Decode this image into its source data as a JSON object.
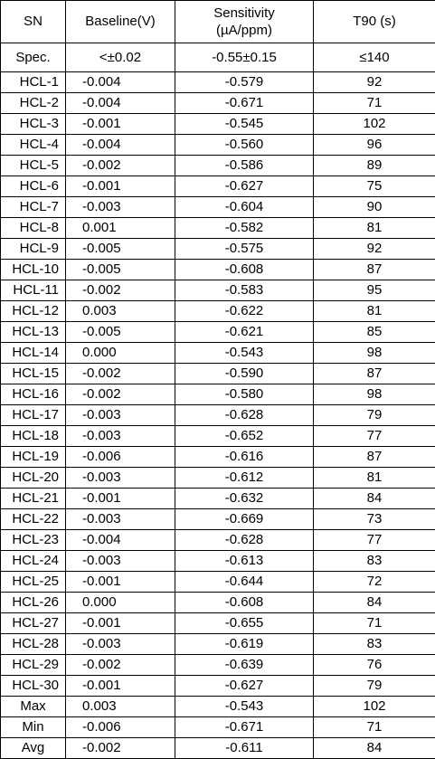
{
  "headers": {
    "sn": "SN",
    "baseline": "Baseline(V)",
    "sensitivity_line1": "Sensitivity",
    "sensitivity_line2": "(µA/ppm)",
    "t90": "T90 (s)"
  },
  "spec": {
    "label": "Spec.",
    "baseline": "<±0.02",
    "sensitivity": "-0.55±0.15",
    "t90": "≤140"
  },
  "rows": [
    {
      "sn": "HCL-1",
      "baseline": "-0.004",
      "sensitivity": "-0.579",
      "t90": "92"
    },
    {
      "sn": "HCL-2",
      "baseline": "-0.004",
      "sensitivity": "-0.671",
      "t90": "71"
    },
    {
      "sn": "HCL-3",
      "baseline": "-0.001",
      "sensitivity": "-0.545",
      "t90": "102"
    },
    {
      "sn": "HCL-4",
      "baseline": "-0.004",
      "sensitivity": "-0.560",
      "t90": "96"
    },
    {
      "sn": "HCL-5",
      "baseline": "-0.002",
      "sensitivity": "-0.586",
      "t90": "89"
    },
    {
      "sn": "HCL-6",
      "baseline": "-0.001",
      "sensitivity": "-0.627",
      "t90": "75"
    },
    {
      "sn": "HCL-7",
      "baseline": "-0.003",
      "sensitivity": "-0.604",
      "t90": "90"
    },
    {
      "sn": "HCL-8",
      "baseline": "0.001",
      "sensitivity": "-0.582",
      "t90": "81"
    },
    {
      "sn": "HCL-9",
      "baseline": "-0.005",
      "sensitivity": "-0.575",
      "t90": "92"
    },
    {
      "sn": "HCL-10",
      "baseline": "-0.005",
      "sensitivity": "-0.608",
      "t90": "87"
    },
    {
      "sn": "HCL-11",
      "baseline": "-0.002",
      "sensitivity": "-0.583",
      "t90": "95"
    },
    {
      "sn": "HCL-12",
      "baseline": "0.003",
      "sensitivity": "-0.622",
      "t90": "81"
    },
    {
      "sn": "HCL-13",
      "baseline": "-0.005",
      "sensitivity": "-0.621",
      "t90": "85"
    },
    {
      "sn": "HCL-14",
      "baseline": "0.000",
      "sensitivity": "-0.543",
      "t90": "98"
    },
    {
      "sn": "HCL-15",
      "baseline": "-0.002",
      "sensitivity": "-0.590",
      "t90": "87"
    },
    {
      "sn": "HCL-16",
      "baseline": "-0.002",
      "sensitivity": "-0.580",
      "t90": "98"
    },
    {
      "sn": "HCL-17",
      "baseline": "-0.003",
      "sensitivity": "-0.628",
      "t90": "79"
    },
    {
      "sn": "HCL-18",
      "baseline": "-0.003",
      "sensitivity": "-0.652",
      "t90": "77"
    },
    {
      "sn": "HCL-19",
      "baseline": "-0.006",
      "sensitivity": "-0.616",
      "t90": "87"
    },
    {
      "sn": "HCL-20",
      "baseline": "-0.003",
      "sensitivity": "-0.612",
      "t90": "81"
    },
    {
      "sn": "HCL-21",
      "baseline": "-0.001",
      "sensitivity": "-0.632",
      "t90": "84"
    },
    {
      "sn": "HCL-22",
      "baseline": "-0.003",
      "sensitivity": "-0.669",
      "t90": "73"
    },
    {
      "sn": "HCL-23",
      "baseline": "-0.004",
      "sensitivity": "-0.628",
      "t90": "77"
    },
    {
      "sn": "HCL-24",
      "baseline": "-0.003",
      "sensitivity": "-0.613",
      "t90": "83"
    },
    {
      "sn": "HCL-25",
      "baseline": "-0.001",
      "sensitivity": "-0.644",
      "t90": "72"
    },
    {
      "sn": "HCL-26",
      "baseline": "0.000",
      "sensitivity": "-0.608",
      "t90": "84"
    },
    {
      "sn": "HCL-27",
      "baseline": "-0.001",
      "sensitivity": "-0.655",
      "t90": "71"
    },
    {
      "sn": "HCL-28",
      "baseline": "-0.003",
      "sensitivity": "-0.619",
      "t90": "83"
    },
    {
      "sn": "HCL-29",
      "baseline": "-0.002",
      "sensitivity": "-0.639",
      "t90": "76"
    },
    {
      "sn": "HCL-30",
      "baseline": "-0.001",
      "sensitivity": "-0.627",
      "t90": "79"
    }
  ],
  "stats": [
    {
      "sn": "Max",
      "baseline": "0.003",
      "sensitivity": "-0.543",
      "t90": "102"
    },
    {
      "sn": "Min",
      "baseline": "-0.006",
      "sensitivity": "-0.671",
      "t90": "71"
    },
    {
      "sn": "Avg",
      "baseline": "-0.002",
      "sensitivity": "-0.611",
      "t90": "84"
    }
  ]
}
